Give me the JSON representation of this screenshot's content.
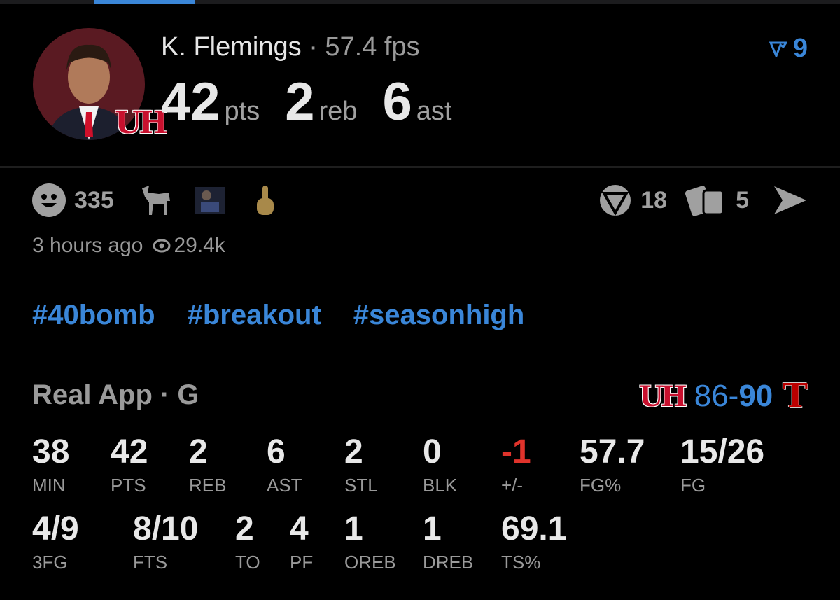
{
  "player": {
    "name": "K. Flemings",
    "separator": "·",
    "fps": "57.4 fps",
    "pts": "42",
    "pts_label": "pts",
    "reb": "2",
    "reb_label": "reb",
    "ast": "6",
    "ast_label": "ast",
    "team_logo": "UH"
  },
  "rank": {
    "icon": "real-rank-icon",
    "value": "9"
  },
  "reactions": {
    "count": "335",
    "emojis": [
      "goat",
      "meme-image",
      "middle-finger"
    ]
  },
  "actions": {
    "comments": "18",
    "shares": "5"
  },
  "meta": {
    "time": "3 hours ago",
    "views": "29.4k"
  },
  "hashtags": [
    "#40bomb",
    "#breakout",
    "#seasonhigh"
  ],
  "game": {
    "league": "Real App · G",
    "score_home": "86",
    "score_sep": "-",
    "score_away": "90",
    "home_logo": "UH",
    "away_logo": "T"
  },
  "stats_row1": [
    {
      "v": "38",
      "l": "MIN"
    },
    {
      "v": "42",
      "l": "PTS"
    },
    {
      "v": "2",
      "l": "REB"
    },
    {
      "v": "6",
      "l": "AST"
    },
    {
      "v": "2",
      "l": "STL"
    },
    {
      "v": "0",
      "l": "BLK"
    },
    {
      "v": "-1",
      "l": "+/-"
    },
    {
      "v": "57.7",
      "l": "FG%"
    },
    {
      "v": "15/26",
      "l": "FG"
    }
  ],
  "stats_row2": [
    {
      "v": "4/9",
      "l": "3FG"
    },
    {
      "v": "8/10",
      "l": "FTS"
    },
    {
      "v": "2",
      "l": "TO"
    },
    {
      "v": "4",
      "l": "PF"
    },
    {
      "v": "1",
      "l": "OREB"
    },
    {
      "v": "1",
      "l": "DREB"
    },
    {
      "v": "69.1",
      "l": "TS%"
    }
  ],
  "colors": {
    "accent": "#3a86d8",
    "negative": "#e0332b",
    "uh_red": "#c8102e"
  }
}
